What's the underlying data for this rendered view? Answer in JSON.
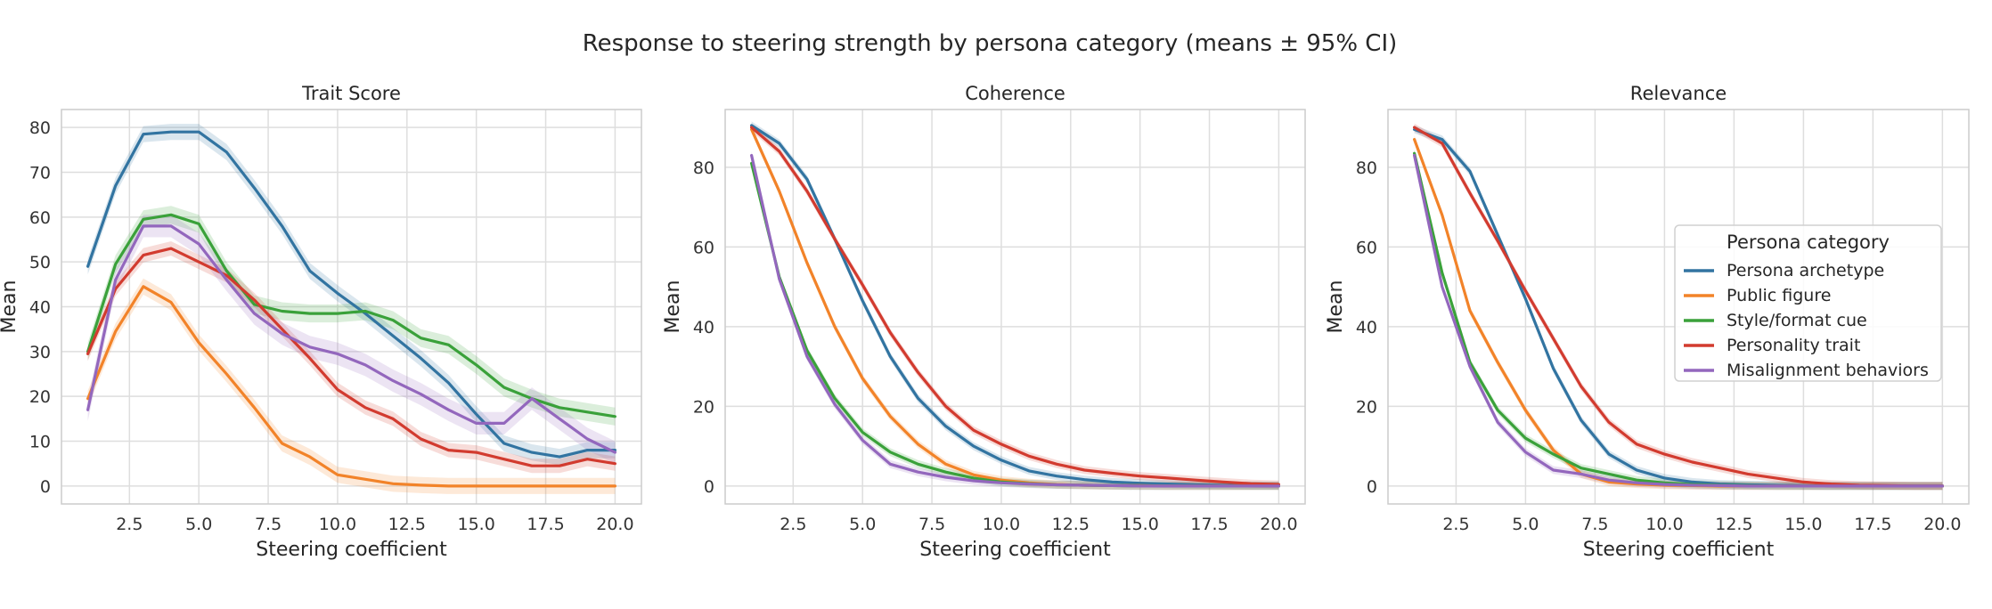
{
  "figure_title": "Response to steering strength by persona category (means ± 95% CI)",
  "legend": {
    "title": "Persona category",
    "entries": [
      "Persona archetype",
      "Public figure",
      "Style/format cue",
      "Personality trait",
      "Misalignment behaviors"
    ]
  },
  "chart_data": [
    {
      "type": "line",
      "title": "Trait Score",
      "xlabel": "Steering coefficient",
      "ylabel": "Mean",
      "xlim": [
        0.05,
        20.95
      ],
      "ylim": [
        -4,
        84
      ],
      "xticks": [
        2.5,
        5.0,
        7.5,
        10.0,
        12.5,
        15.0,
        17.5,
        20.0
      ],
      "xtick_labels": [
        "2.5",
        "5.0",
        "7.5",
        "10.0",
        "12.5",
        "15.0",
        "17.5",
        "20.0"
      ],
      "yticks": [
        0,
        10,
        20,
        30,
        40,
        50,
        60,
        70,
        80
      ],
      "ytick_labels": [
        "0",
        "10",
        "20",
        "30",
        "40",
        "50",
        "60",
        "70",
        "80"
      ],
      "grid": true,
      "x": [
        1,
        2,
        3,
        4,
        5,
        6,
        7,
        8,
        9,
        10,
        11,
        12,
        13,
        14,
        15,
        16,
        17,
        18,
        19,
        20
      ],
      "series": [
        {
          "name": "Persona archetype",
          "color": "#3274a1",
          "ci": 1.8,
          "values": [
            49,
            67,
            78.5,
            79,
            79,
            74.5,
            66.5,
            58,
            48,
            43,
            38.5,
            33.5,
            28.5,
            23,
            16,
            9.5,
            7.5,
            6.5,
            8,
            8
          ]
        },
        {
          "name": "Public figure",
          "color": "#f28329",
          "ci": 1.8,
          "values": [
            19.5,
            34.5,
            44.5,
            41,
            32,
            25,
            17.5,
            9.5,
            6.5,
            2.5,
            1.5,
            0.5,
            0.2,
            0,
            0,
            0,
            0,
            0,
            0,
            0
          ]
        },
        {
          "name": "Style/format cue",
          "color": "#3aa13a",
          "ci": 2.0,
          "values": [
            30,
            49.5,
            59.5,
            60.5,
            58.5,
            48,
            40.5,
            39,
            38.5,
            38.5,
            39,
            37,
            33,
            31.5,
            27,
            22,
            19.5,
            17.5,
            16.5,
            15.5
          ]
        },
        {
          "name": "Personality trait",
          "color": "#d23b2f",
          "ci": 1.6,
          "values": [
            29.5,
            44,
            51.5,
            53,
            50,
            47,
            41.5,
            35,
            28.5,
            21.5,
            17.5,
            15,
            10.5,
            8,
            7.5,
            6,
            4.5,
            4.5,
            6,
            5
          ]
        },
        {
          "name": "Misalignment behaviors",
          "color": "#9367bd",
          "ci": 2.5,
          "values": [
            17,
            46,
            58,
            58,
            54,
            46,
            38.5,
            34,
            31,
            29.5,
            27,
            23.5,
            20.5,
            17,
            14,
            14,
            19.5,
            15,
            10.5,
            7.5
          ]
        }
      ]
    },
    {
      "type": "line",
      "title": "Coherence",
      "xlabel": "Steering coefficient",
      "ylabel": "Mean",
      "xlim": [
        0.05,
        20.95
      ],
      "ylim": [
        -4.5,
        94.5
      ],
      "xticks": [
        2.5,
        5.0,
        7.5,
        10.0,
        12.5,
        15.0,
        17.5,
        20.0
      ],
      "xtick_labels": [
        "2.5",
        "5.0",
        "7.5",
        "10.0",
        "12.5",
        "15.0",
        "17.5",
        "20.0"
      ],
      "yticks": [
        0,
        20,
        40,
        60,
        80
      ],
      "ytick_labels": [
        "0",
        "20",
        "40",
        "60",
        "80"
      ],
      "grid": true,
      "x": [
        1,
        2,
        3,
        4,
        5,
        6,
        7,
        8,
        9,
        10,
        11,
        12,
        13,
        14,
        15,
        16,
        17,
        18,
        19,
        20
      ],
      "series": [
        {
          "name": "Persona archetype",
          "color": "#3274a1",
          "ci": 1.0,
          "values": [
            90.5,
            86,
            77,
            62,
            46.5,
            32.5,
            22,
            15,
            10,
            6.5,
            3.8,
            2.5,
            1.6,
            1,
            0.7,
            0.5,
            0.3,
            0.2,
            0.1,
            0.1
          ]
        },
        {
          "name": "Public figure",
          "color": "#f28329",
          "ci": 1.0,
          "values": [
            89.5,
            74,
            56,
            40,
            27,
            17.5,
            10.5,
            5.5,
            2.8,
            1.5,
            0.8,
            0.4,
            0.2,
            0.1,
            0.1,
            0,
            0,
            0,
            0,
            0
          ]
        },
        {
          "name": "Style/format cue",
          "color": "#3aa13a",
          "ci": 1.0,
          "values": [
            81,
            52.5,
            34,
            22,
            13.5,
            8.5,
            5.5,
            3.5,
            2,
            1,
            0.6,
            0.3,
            0.2,
            0.1,
            0,
            0,
            0,
            0,
            0,
            0
          ]
        },
        {
          "name": "Personality trait",
          "color": "#d23b2f",
          "ci": 1.0,
          "values": [
            90,
            84,
            74,
            62,
            50.5,
            38.5,
            28.5,
            20,
            14,
            10.5,
            7.5,
            5.5,
            4,
            3.2,
            2.5,
            2,
            1.5,
            1,
            0.6,
            0.4
          ]
        },
        {
          "name": "Misalignment behaviors",
          "color": "#9367bd",
          "ci": 1.0,
          "values": [
            83,
            52,
            32.5,
            20.5,
            11.5,
            5.5,
            3.5,
            2.2,
            1.3,
            0.8,
            0.5,
            0.3,
            0.2,
            0.1,
            0,
            0,
            0,
            0,
            0,
            0
          ]
        }
      ]
    },
    {
      "type": "line",
      "title": "Relevance",
      "xlabel": "Steering coefficient",
      "ylabel": "Mean",
      "xlim": [
        0.05,
        20.95
      ],
      "ylim": [
        -4.5,
        94.5
      ],
      "xticks": [
        2.5,
        5.0,
        7.5,
        10.0,
        12.5,
        15.0,
        17.5,
        20.0
      ],
      "xtick_labels": [
        "2.5",
        "5.0",
        "7.5",
        "10.0",
        "12.5",
        "15.0",
        "17.5",
        "20.0"
      ],
      "yticks": [
        0,
        20,
        40,
        60,
        80
      ],
      "ytick_labels": [
        "0",
        "20",
        "40",
        "60",
        "80"
      ],
      "grid": true,
      "legend_position": "right",
      "x": [
        1,
        2,
        3,
        4,
        5,
        6,
        7,
        8,
        9,
        10,
        11,
        12,
        13,
        14,
        15,
        16,
        17,
        18,
        19,
        20
      ],
      "series": [
        {
          "name": "Persona archetype",
          "color": "#3274a1",
          "ci": 1.0,
          "values": [
            89.5,
            87,
            79,
            63,
            47,
            29.5,
            16.5,
            8,
            4,
            2,
            1,
            0.5,
            0.3,
            0.2,
            0.1,
            0,
            0,
            0,
            0,
            0
          ]
        },
        {
          "name": "Public figure",
          "color": "#f28329",
          "ci": 1.0,
          "values": [
            87,
            68,
            44,
            31,
            19,
            9,
            3,
            1,
            0.5,
            0.2,
            0.1,
            0,
            0,
            0,
            0,
            0,
            0,
            0,
            0,
            0
          ]
        },
        {
          "name": "Style/format cue",
          "color": "#3aa13a",
          "ci": 1.0,
          "values": [
            83.5,
            53.5,
            31,
            19,
            12,
            8,
            4.5,
            3,
            1.5,
            0.8,
            0.4,
            0.2,
            0.1,
            0,
            0,
            0,
            0,
            0,
            0,
            0
          ]
        },
        {
          "name": "Personality trait",
          "color": "#d23b2f",
          "ci": 1.0,
          "values": [
            90,
            86,
            73.5,
            61.5,
            49,
            37,
            25,
            16,
            10.5,
            8,
            6,
            4.5,
            3,
            2,
            1,
            0.5,
            0.2,
            0.1,
            0,
            0
          ]
        },
        {
          "name": "Misalignment behaviors",
          "color": "#9367bd",
          "ci": 1.0,
          "values": [
            83,
            50,
            30,
            16,
            8.5,
            4,
            3,
            1.5,
            0.8,
            0.4,
            0.2,
            0.1,
            0,
            0,
            0,
            0,
            0,
            0,
            0,
            0
          ]
        }
      ]
    }
  ]
}
